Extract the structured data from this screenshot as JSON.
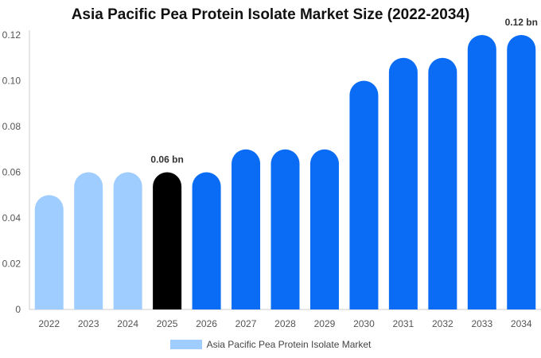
{
  "chart_data": {
    "type": "bar",
    "title": "Asia Pacific Pea Protein Isolate Market Size (2022-2034)",
    "categories": [
      "2022",
      "2023",
      "2024",
      "2025",
      "2026",
      "2027",
      "2028",
      "2029",
      "2030",
      "2031",
      "2032",
      "2033",
      "2034"
    ],
    "series": [
      {
        "name": "Asia Pacific Pea Protein Isolate Market",
        "values": [
          0.05,
          0.06,
          0.06,
          0.06,
          0.06,
          0.07,
          0.07,
          0.07,
          0.1,
          0.11,
          0.11,
          0.12,
          0.12
        ]
      }
    ],
    "yticks": [
      "0",
      "0.02",
      "0.04",
      "0.06",
      "0.08",
      "0.10",
      "0.12"
    ],
    "ylim": [
      0,
      0.12
    ],
    "data_labels": [
      {
        "index": 3,
        "text": "0.06 bn"
      },
      {
        "index": 12,
        "text": "0.12 bn"
      }
    ],
    "colors": {
      "history": "#a0cdff",
      "current": "#000000",
      "forecast": "#0a6cf5",
      "axis": "#cccccc"
    },
    "bar_color_groups": [
      "history",
      "history",
      "history",
      "current",
      "forecast",
      "forecast",
      "forecast",
      "forecast",
      "forecast",
      "forecast",
      "forecast",
      "forecast",
      "forecast"
    ],
    "legend": {
      "position": "bottom",
      "label": "Asia Pacific Pea Protein Isolate Market"
    },
    "grid": false
  }
}
